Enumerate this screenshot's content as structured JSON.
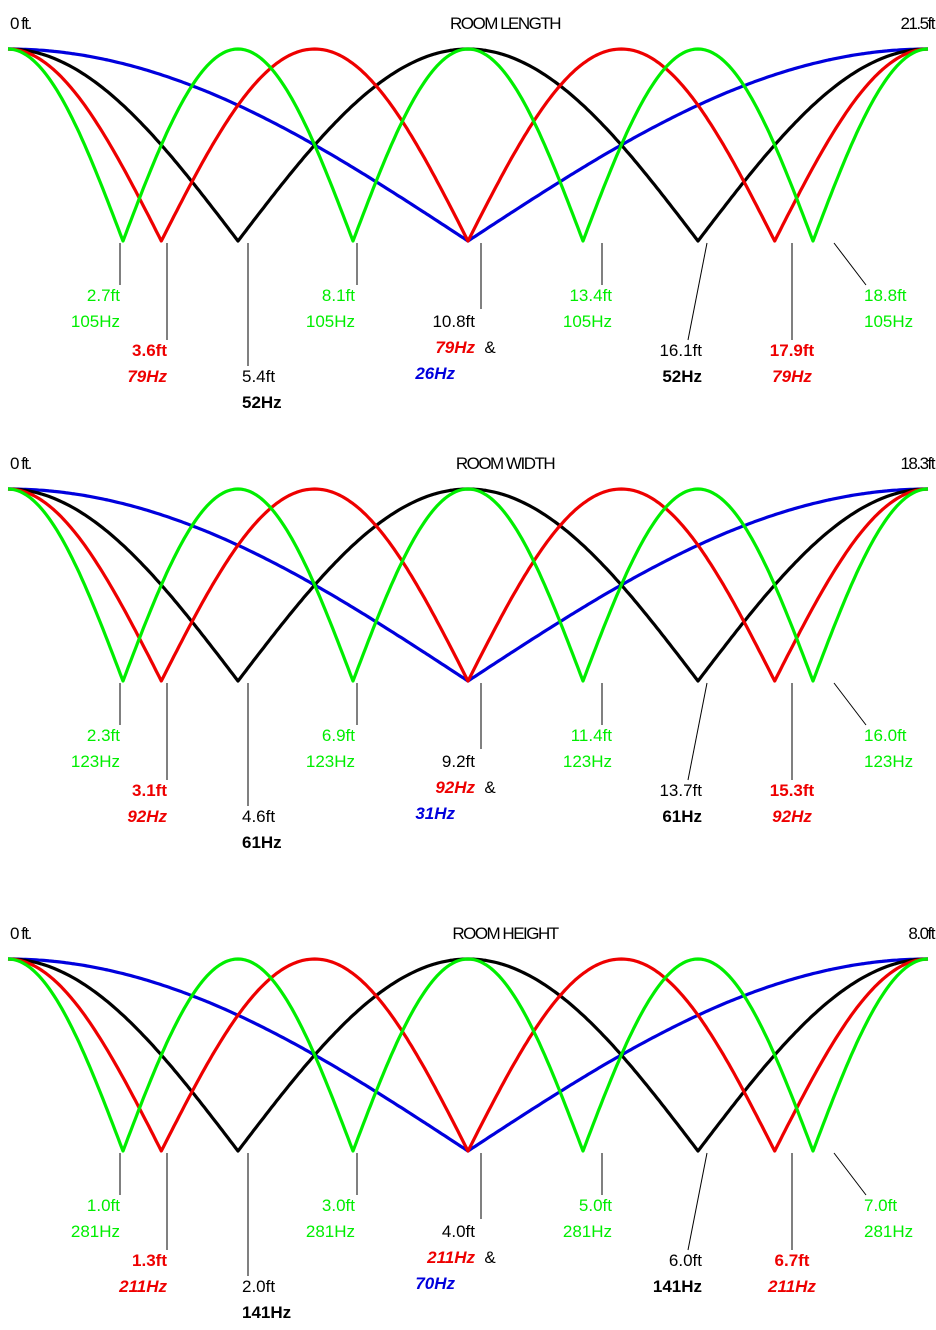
{
  "colors": {
    "fundamental": "#0000dd",
    "second": "#000000",
    "third": "#ee0000",
    "fourth": "#00ee00",
    "leader": "#000000",
    "text_default": "#000000"
  },
  "panels": [
    {
      "title": "ROOM LENGTH",
      "start_label": "0 ft.",
      "end_label": "21.5ft",
      "length_ft": 21.5,
      "and_label": "&",
      "nodes": [
        {
          "mode": "fourth",
          "pos_ft": 2.7,
          "pos_label": "2.7ft",
          "freq_label": "105Hz"
        },
        {
          "mode": "third",
          "pos_ft": 3.6,
          "pos_label": "3.6ft",
          "freq_label": "79Hz"
        },
        {
          "mode": "second",
          "pos_ft": 5.4,
          "pos_label": "5.4ft",
          "freq_label": "52Hz"
        },
        {
          "mode": "fourth",
          "pos_ft": 8.1,
          "pos_label": "8.1ft",
          "freq_label": "105Hz"
        },
        {
          "mode": "center",
          "pos_ft": 10.8,
          "pos_label": "10.8ft",
          "freq_label": "79Hz",
          "freq_label_2": "26Hz"
        },
        {
          "mode": "fourth",
          "pos_ft": 13.4,
          "pos_label": "13.4ft",
          "freq_label": "105Hz"
        },
        {
          "mode": "second",
          "pos_ft": 16.1,
          "pos_label": "16.1ft",
          "freq_label": "52Hz"
        },
        {
          "mode": "third",
          "pos_ft": 17.9,
          "pos_label": "17.9ft",
          "freq_label": "79Hz"
        },
        {
          "mode": "fourth",
          "pos_ft": 18.8,
          "pos_label": "18.8ft",
          "freq_label": "105Hz"
        }
      ]
    },
    {
      "title": "ROOM WIDTH",
      "start_label": "0 ft.",
      "end_label": "18.3ft",
      "length_ft": 18.3,
      "and_label": "&",
      "nodes": [
        {
          "mode": "fourth",
          "pos_ft": 2.3,
          "pos_label": "2.3ft",
          "freq_label": "123Hz"
        },
        {
          "mode": "third",
          "pos_ft": 3.1,
          "pos_label": "3.1ft",
          "freq_label": "92Hz"
        },
        {
          "mode": "second",
          "pos_ft": 4.6,
          "pos_label": "4.6ft",
          "freq_label": "61Hz"
        },
        {
          "mode": "fourth",
          "pos_ft": 6.9,
          "pos_label": "6.9ft",
          "freq_label": "123Hz"
        },
        {
          "mode": "center",
          "pos_ft": 9.2,
          "pos_label": "9.2ft",
          "freq_label": "92Hz",
          "freq_label_2": "31Hz"
        },
        {
          "mode": "fourth",
          "pos_ft": 11.4,
          "pos_label": "11.4ft",
          "freq_label": "123Hz"
        },
        {
          "mode": "second",
          "pos_ft": 13.7,
          "pos_label": "13.7ft",
          "freq_label": "61Hz"
        },
        {
          "mode": "third",
          "pos_ft": 15.3,
          "pos_label": "15.3ft",
          "freq_label": "92Hz"
        },
        {
          "mode": "fourth",
          "pos_ft": 16.0,
          "pos_label": "16.0ft",
          "freq_label": "123Hz"
        }
      ]
    },
    {
      "title": "ROOM HEIGHT",
      "start_label": "0 ft.",
      "end_label": "8.0ft",
      "length_ft": 8.0,
      "and_label": "&",
      "nodes": [
        {
          "mode": "fourth",
          "pos_ft": 1.0,
          "pos_label": "1.0ft",
          "freq_label": "281Hz"
        },
        {
          "mode": "third",
          "pos_ft": 1.3,
          "pos_label": "1.3ft",
          "freq_label": "211Hz"
        },
        {
          "mode": "second",
          "pos_ft": 2.0,
          "pos_label": "2.0ft",
          "freq_label": "141Hz"
        },
        {
          "mode": "fourth",
          "pos_ft": 3.0,
          "pos_label": "3.0ft",
          "freq_label": "281Hz"
        },
        {
          "mode": "center",
          "pos_ft": 4.0,
          "pos_label": "4.0ft",
          "freq_label": "211Hz",
          "freq_label_2": "70Hz"
        },
        {
          "mode": "fourth",
          "pos_ft": 5.0,
          "pos_label": "5.0ft",
          "freq_label": "281Hz"
        },
        {
          "mode": "second",
          "pos_ft": 6.0,
          "pos_label": "6.0ft",
          "freq_label": "141Hz"
        },
        {
          "mode": "third",
          "pos_ft": 6.7,
          "pos_label": "6.7ft",
          "freq_label": "211Hz"
        },
        {
          "mode": "fourth",
          "pos_ft": 7.0,
          "pos_label": "7.0ft",
          "freq_label": "281Hz"
        }
      ]
    }
  ]
}
